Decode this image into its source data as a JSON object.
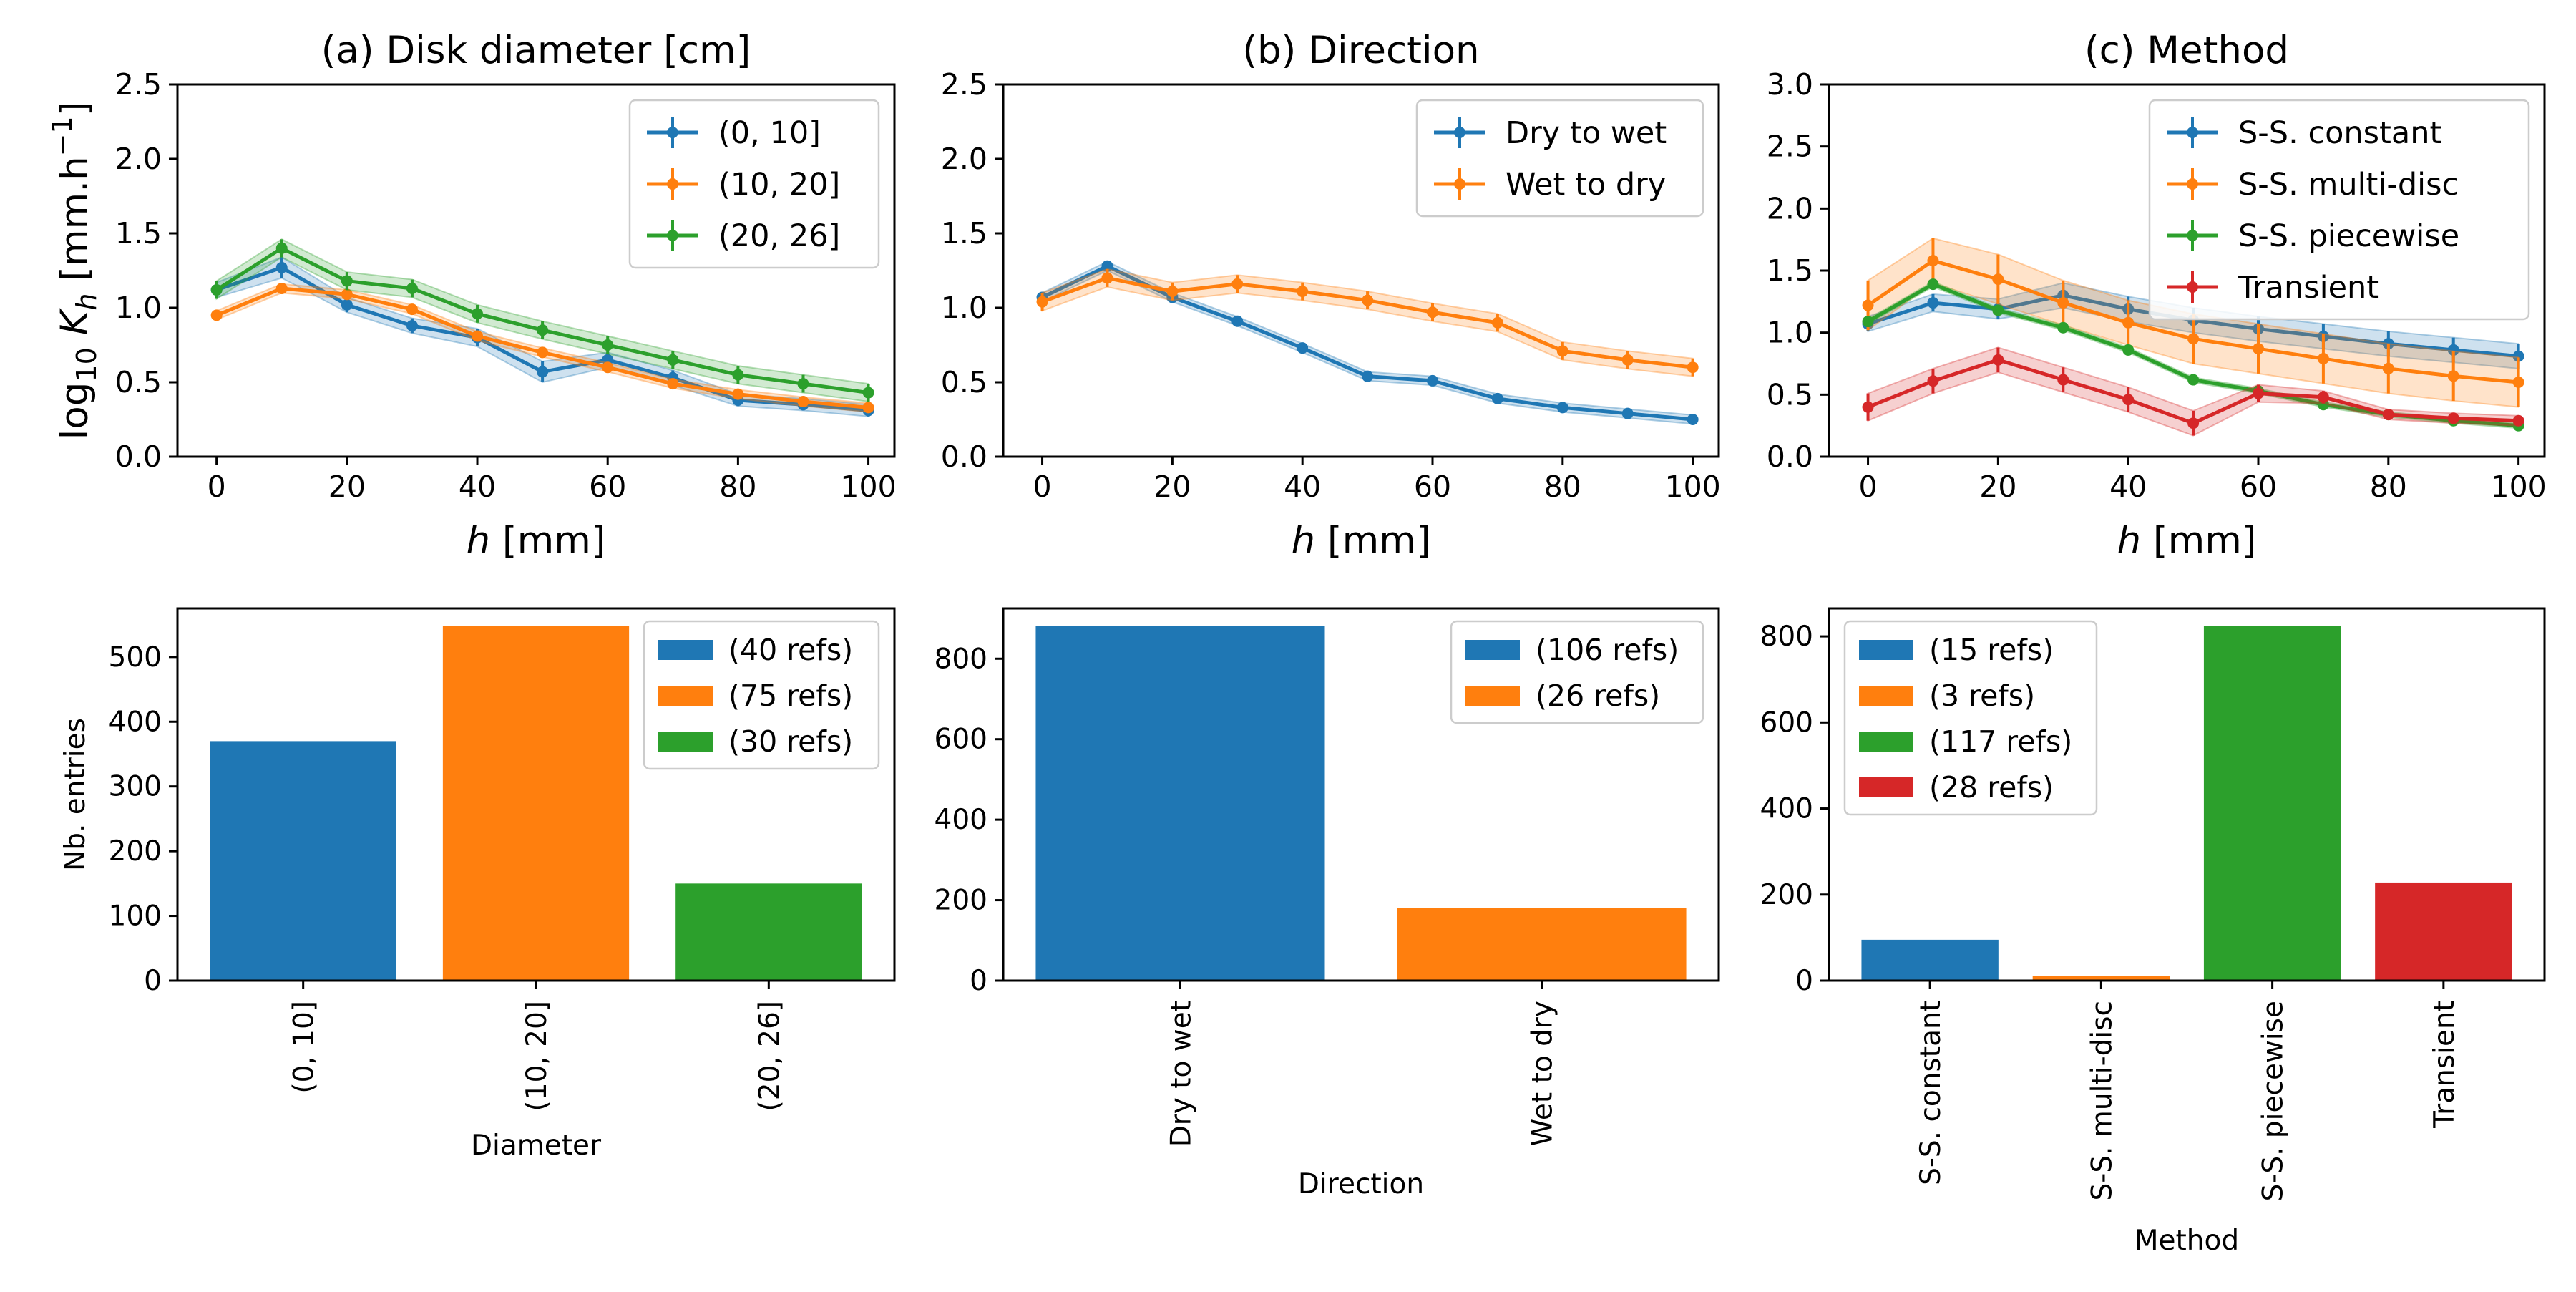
{
  "colors": {
    "blue": "#1f77b4",
    "orange": "#ff7f0e",
    "green": "#2ca02c",
    "red": "#d62728"
  },
  "chart_data": [
    {
      "type": "line",
      "title": "(a) Disk diameter [cm]",
      "xlabel": "h [mm]",
      "ylabel": "log10 Kh [mm.h−1]",
      "xlim": [
        -6,
        104
      ],
      "ylim": [
        0,
        2.5
      ],
      "xticks": [
        0,
        20,
        40,
        60,
        80,
        100
      ],
      "yticks": [
        0.0,
        0.5,
        1.0,
        1.5,
        2.0,
        2.5
      ],
      "legend_position": "top-right",
      "x": [
        0,
        10,
        20,
        30,
        40,
        50,
        60,
        70,
        80,
        90,
        100
      ],
      "series": [
        {
          "name": "(0, 10]",
          "color": "blue",
          "values": [
            1.12,
            1.27,
            1.02,
            0.88,
            0.8,
            0.57,
            0.65,
            0.53,
            0.38,
            0.35,
            0.31
          ],
          "band": [
            0.05,
            0.07,
            0.05,
            0.05,
            0.06,
            0.07,
            0.05,
            0.05,
            0.04,
            0.04,
            0.04
          ]
        },
        {
          "name": "(10, 20]",
          "color": "orange",
          "values": [
            0.95,
            1.13,
            1.09,
            0.99,
            0.81,
            0.7,
            0.6,
            0.49,
            0.42,
            0.37,
            0.33
          ],
          "band": [
            0.03,
            0.03,
            0.03,
            0.03,
            0.03,
            0.03,
            0.03,
            0.03,
            0.03,
            0.03,
            0.03
          ]
        },
        {
          "name": "(20, 26]",
          "color": "green",
          "values": [
            1.12,
            1.4,
            1.18,
            1.13,
            0.96,
            0.85,
            0.75,
            0.65,
            0.55,
            0.49,
            0.43
          ],
          "band": [
            0.06,
            0.06,
            0.06,
            0.06,
            0.06,
            0.06,
            0.06,
            0.06,
            0.06,
            0.06,
            0.06
          ]
        }
      ]
    },
    {
      "type": "line",
      "title": "(b) Direction",
      "xlabel": "h [mm]",
      "ylabel": "",
      "xlim": [
        -6,
        104
      ],
      "ylim": [
        0,
        2.5
      ],
      "xticks": [
        0,
        20,
        40,
        60,
        80,
        100
      ],
      "yticks": [
        0.0,
        0.5,
        1.0,
        1.5,
        2.0,
        2.5
      ],
      "legend_position": "top-right",
      "x": [
        0,
        10,
        20,
        30,
        40,
        50,
        60,
        70,
        80,
        90,
        100
      ],
      "series": [
        {
          "name": "Dry to wet",
          "color": "blue",
          "values": [
            1.07,
            1.28,
            1.07,
            0.91,
            0.73,
            0.54,
            0.51,
            0.39,
            0.33,
            0.29,
            0.25
          ],
          "band": [
            0.03,
            0.03,
            0.03,
            0.03,
            0.03,
            0.03,
            0.03,
            0.03,
            0.03,
            0.03,
            0.03
          ]
        },
        {
          "name": "Wet to dry",
          "color": "orange",
          "values": [
            1.04,
            1.2,
            1.11,
            1.16,
            1.11,
            1.05,
            0.97,
            0.9,
            0.71,
            0.65,
            0.6
          ],
          "band": [
            0.06,
            0.06,
            0.06,
            0.06,
            0.06,
            0.06,
            0.06,
            0.06,
            0.06,
            0.06,
            0.06
          ]
        }
      ]
    },
    {
      "type": "line",
      "title": "(c) Method",
      "xlabel": "h [mm]",
      "ylabel": "",
      "xlim": [
        -6,
        104
      ],
      "ylim": [
        0,
        3.0
      ],
      "xticks": [
        0,
        20,
        40,
        60,
        80,
        100
      ],
      "yticks": [
        0.0,
        0.5,
        1.0,
        1.5,
        2.0,
        2.5,
        3.0
      ],
      "legend_position": "top-right",
      "x": [
        0,
        10,
        20,
        30,
        40,
        50,
        60,
        70,
        80,
        90,
        100
      ],
      "series": [
        {
          "name": "S-S. constant",
          "color": "blue",
          "values": [
            1.07,
            1.24,
            1.19,
            1.3,
            1.19,
            1.1,
            1.03,
            0.97,
            0.91,
            0.86,
            0.81
          ],
          "band": [
            0.06,
            0.07,
            0.08,
            0.1,
            0.1,
            0.1,
            0.1,
            0.1,
            0.1,
            0.1,
            0.1
          ]
        },
        {
          "name": "S-S. multi-disc",
          "color": "orange",
          "values": [
            1.22,
            1.58,
            1.43,
            1.24,
            1.08,
            0.95,
            0.87,
            0.79,
            0.71,
            0.65,
            0.6
          ],
          "band": [
            0.2,
            0.18,
            0.2,
            0.18,
            0.18,
            0.2,
            0.2,
            0.2,
            0.2,
            0.2,
            0.2
          ]
        },
        {
          "name": "S-S. piecewise",
          "color": "green",
          "values": [
            1.09,
            1.39,
            1.18,
            1.04,
            0.86,
            0.62,
            0.53,
            0.42,
            0.34,
            0.29,
            0.25
          ],
          "band": [
            0.02,
            0.02,
            0.02,
            0.02,
            0.02,
            0.02,
            0.02,
            0.02,
            0.02,
            0.02,
            0.02
          ]
        },
        {
          "name": "Transient",
          "color": "red",
          "values": [
            0.4,
            0.61,
            0.78,
            0.62,
            0.46,
            0.27,
            0.51,
            0.48,
            0.34,
            0.31,
            0.29
          ],
          "band": [
            0.11,
            0.1,
            0.1,
            0.1,
            0.1,
            0.1,
            0.07,
            0.05,
            0.04,
            0.04,
            0.04
          ]
        }
      ]
    },
    {
      "type": "bar",
      "title": "",
      "xlabel": "Diameter",
      "ylabel": "Nb. entries",
      "ylim": [
        0,
        575
      ],
      "yticks": [
        0,
        100,
        200,
        300,
        400,
        500
      ],
      "categories": [
        "(0, 10]",
        "(10, 20]",
        "(20, 26]"
      ],
      "values": [
        370,
        548,
        150
      ],
      "bar_colors": [
        "blue",
        "orange",
        "green"
      ],
      "legend": [
        "(40 refs)",
        "(75 refs)",
        "(30 refs)"
      ],
      "legend_position": "top-right"
    },
    {
      "type": "bar",
      "title": "",
      "xlabel": "Direction",
      "ylabel": "",
      "ylim": [
        0,
        925
      ],
      "yticks": [
        0,
        200,
        400,
        600,
        800
      ],
      "categories": [
        "Dry to wet",
        "Wet to dry"
      ],
      "values": [
        882,
        180
      ],
      "bar_colors": [
        "blue",
        "orange"
      ],
      "legend": [
        "(106 refs)",
        "(26 refs)"
      ],
      "legend_position": "top-right"
    },
    {
      "type": "bar",
      "title": "",
      "xlabel": "Method",
      "ylabel": "",
      "ylim": [
        0,
        865
      ],
      "yticks": [
        0,
        200,
        400,
        600,
        800
      ],
      "categories": [
        "S-S. constant",
        "S-S. multi-disc",
        "S-S. piecewise",
        "Transient"
      ],
      "values": [
        95,
        10,
        825,
        228
      ],
      "bar_colors": [
        "blue",
        "orange",
        "green",
        "red"
      ],
      "legend": [
        "(15 refs)",
        "(3 refs)",
        "(117 refs)",
        "(28 refs)"
      ],
      "legend_position": "top-left"
    }
  ]
}
